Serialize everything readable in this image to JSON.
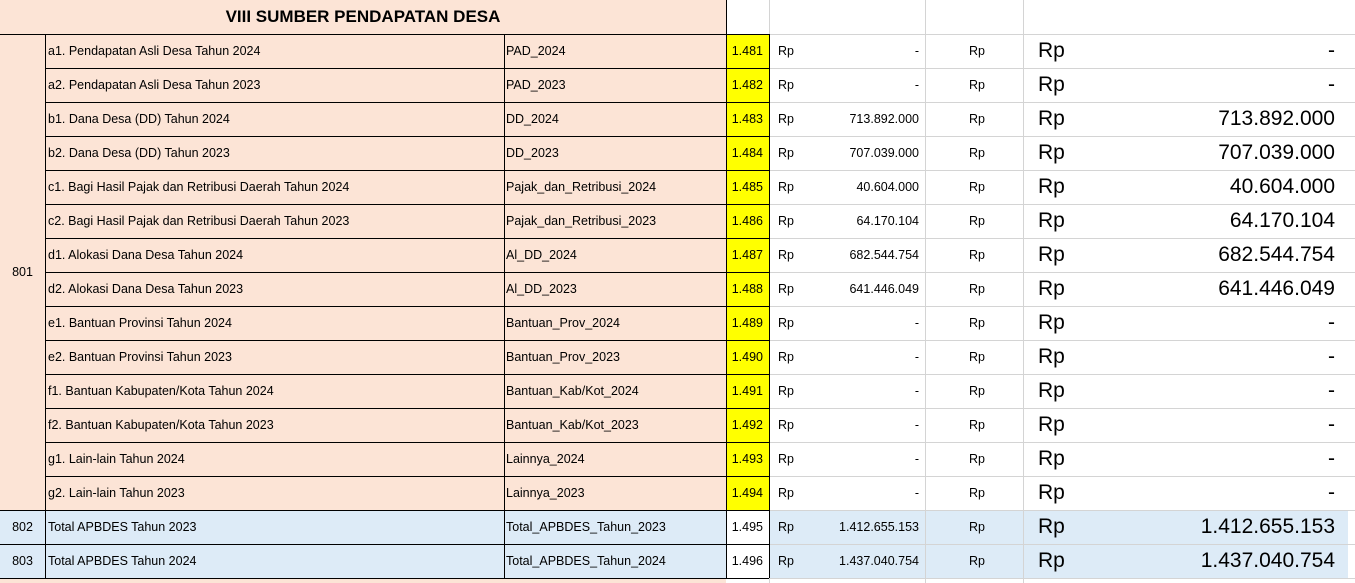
{
  "title": "VIII SUMBER PENDAPATAN DESA",
  "colors": {
    "peach": "#fce4d6",
    "yellow": "#ffff00",
    "blue": "#ddebf7"
  },
  "group_code": "801",
  "rows": [
    {
      "label": "a1. Pendapatan Asli Desa Tahun 2024",
      "var": "PAD_2024",
      "code": "1.481",
      "rp1": "Rp",
      "val1": "-",
      "rp2": "Rp",
      "rp3": "Rp",
      "val2": "-"
    },
    {
      "label": "a2. Pendapatan Asli Desa Tahun 2023",
      "var": "PAD_2023",
      "code": "1.482",
      "rp1": "Rp",
      "val1": "-",
      "rp2": "Rp",
      "rp3": "Rp",
      "val2": "-"
    },
    {
      "label": "b1. Dana Desa (DD) Tahun 2024",
      "var": "DD_2024",
      "code": "1.483",
      "rp1": "Rp",
      "val1": "713.892.000",
      "rp2": "Rp",
      "rp3": "Rp",
      "val2": "713.892.000"
    },
    {
      "label": "b2. Dana Desa (DD) Tahun 2023",
      "var": "DD_2023",
      "code": "1.484",
      "rp1": "Rp",
      "val1": "707.039.000",
      "rp2": "Rp",
      "rp3": "Rp",
      "val2": "707.039.000"
    },
    {
      "label": "c1. Bagi Hasil Pajak dan Retribusi Daerah Tahun 2024",
      "var": "Pajak_dan_Retribusi_2024",
      "code": "1.485",
      "rp1": "Rp",
      "val1": "40.604.000",
      "rp2": "Rp",
      "rp3": "Rp",
      "val2": "40.604.000"
    },
    {
      "label": "c2. Bagi Hasil Pajak dan Retribusi Daerah Tahun 2023",
      "var": "Pajak_dan_Retribusi_2023",
      "code": "1.486",
      "rp1": "Rp",
      "val1": "64.170.104",
      "rp2": "Rp",
      "rp3": "Rp",
      "val2": "64.170.104"
    },
    {
      "label": "d1. Alokasi Dana Desa Tahun 2024",
      "var": "Al_DD_2024",
      "code": "1.487",
      "rp1": "Rp",
      "val1": "682.544.754",
      "rp2": "Rp",
      "rp3": "Rp",
      "val2": "682.544.754"
    },
    {
      "label": "d2. Alokasi Dana Desa Tahun 2023",
      "var": "Al_DD_2023",
      "code": "1.488",
      "rp1": "Rp",
      "val1": "641.446.049",
      "rp2": "Rp",
      "rp3": "Rp",
      "val2": "641.446.049"
    },
    {
      "label": "e1. Bantuan Provinsi Tahun 2024",
      "var": "Bantuan_Prov_2024",
      "code": "1.489",
      "rp1": "Rp",
      "val1": "-",
      "rp2": "Rp",
      "rp3": "Rp",
      "val2": "-"
    },
    {
      "label": "e2. Bantuan Provinsi Tahun 2023",
      "var": "Bantuan_Prov_2023",
      "code": "1.490",
      "rp1": "Rp",
      "val1": "-",
      "rp2": "Rp",
      "rp3": "Rp",
      "val2": "-"
    },
    {
      "label": "f1. Bantuan Kabupaten/Kota Tahun 2024",
      "var": "Bantuan_Kab/Kot_2024",
      "code": "1.491",
      "rp1": "Rp",
      "val1": "-",
      "rp2": "Rp",
      "rp3": "Rp",
      "val2": "-"
    },
    {
      "label": "f2. Bantuan Kabupaten/Kota Tahun 2023",
      "var": "Bantuan_Kab/Kot_2023",
      "code": "1.492",
      "rp1": "Rp",
      "val1": "-",
      "rp2": "Rp",
      "rp3": "Rp",
      "val2": "-"
    },
    {
      "label": "g1. Lain-lain Tahun 2024",
      "var": "Lainnya_2024",
      "code": "1.493",
      "rp1": "Rp",
      "val1": "-",
      "rp2": "Rp",
      "rp3": "Rp",
      "val2": "-"
    },
    {
      "label": "g2. Lain-lain Tahun 2023",
      "var": "Lainnya_2023",
      "code": "1.494",
      "rp1": "Rp",
      "val1": "-",
      "rp2": "Rp",
      "rp3": "Rp",
      "val2": "-"
    }
  ],
  "totals": [
    {
      "num": "802",
      "label": "Total APBDES Tahun 2023",
      "var": "Total_APBDES_Tahun_2023",
      "code": "1.495",
      "rp1": "Rp",
      "val1": "1.412.655.153",
      "rp2": "Rp",
      "rp3": "Rp",
      "val2": "1.412.655.153"
    },
    {
      "num": "803",
      "label": "Total APBDES Tahun 2024",
      "var": "Total_APBDES_Tahun_2024",
      "code": "1.496",
      "rp1": "Rp",
      "val1": "1.437.040.754",
      "rp2": "Rp",
      "rp3": "Rp",
      "val2": "1.437.040.754"
    }
  ]
}
